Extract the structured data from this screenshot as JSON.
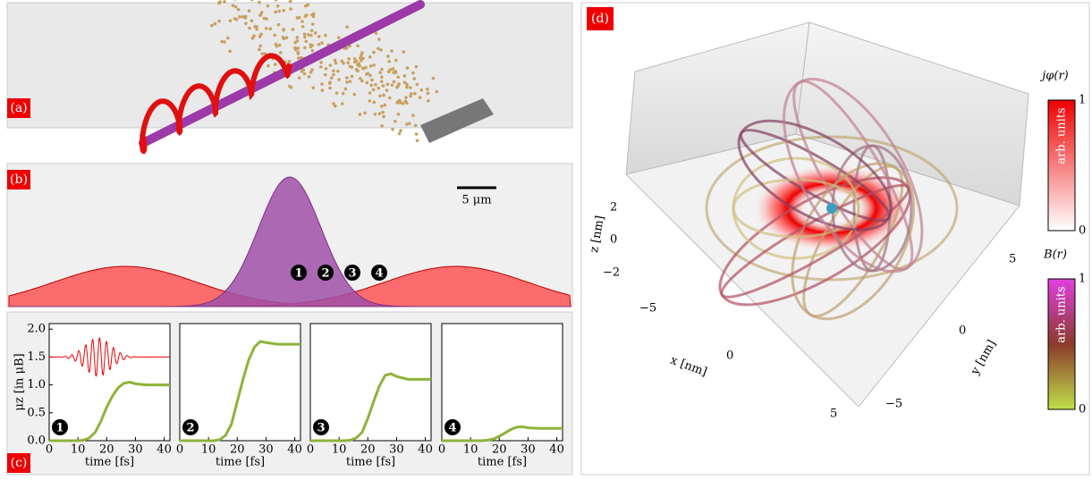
{
  "panels": {
    "a": {
      "label": "(a)"
    },
    "b": {
      "label": "(b)",
      "scale_bar": "5 μm",
      "markers": [
        "1",
        "2",
        "3",
        "4"
      ]
    },
    "c": {
      "label": "(c)"
    },
    "d": {
      "label": "(d)",
      "xlabel": "x [nm]",
      "ylabel": "y [nm]",
      "zlabel": "z [nm]",
      "xticks": [
        "−5",
        "0",
        "5"
      ],
      "yticks": [
        "−5",
        "0",
        "5"
      ],
      "zticks": [
        "−2",
        "0",
        "2"
      ],
      "colorbars": [
        {
          "title": "jφ(r)",
          "units": "arb. units",
          "min": "0",
          "max": "1"
        },
        {
          "title": "B(r)",
          "units": "arb. units",
          "min": "0",
          "max": "1"
        }
      ]
    }
  },
  "chart_data": [
    {
      "type": "line",
      "x": [
        0,
        10,
        12,
        14,
        16,
        18,
        20,
        22,
        24,
        26,
        28,
        30,
        34,
        42
      ],
      "series": [
        {
          "color": "#8db33a",
          "values": [
            0,
            0,
            0.01,
            0.05,
            0.15,
            0.35,
            0.6,
            0.8,
            0.95,
            1.03,
            1.05,
            1.02,
            1.0,
            1.0
          ]
        }
      ],
      "xlim": [
        0,
        42
      ],
      "ylim": [
        0,
        2.1
      ],
      "xticks": [
        0,
        10,
        20,
        30,
        40
      ],
      "yticks": [
        {
          "value": 0,
          "label": "0.0"
        },
        {
          "value": 0.5,
          "label": "0.5"
        },
        {
          "value": 1,
          "label": "1.0"
        },
        {
          "value": 1.5,
          "label": "1.5"
        },
        {
          "value": 2,
          "label": "2.0"
        }
      ],
      "xlabel": "time [fs]",
      "ylabel": "μz [in μB]",
      "annotation": "1"
    },
    {
      "type": "line",
      "x": [
        0,
        10,
        12,
        14,
        16,
        18,
        20,
        22,
        24,
        26,
        28,
        30,
        34,
        42
      ],
      "series": [
        {
          "color": "#8db33a",
          "values": [
            0,
            0,
            0,
            0.02,
            0.1,
            0.3,
            0.7,
            1.1,
            1.45,
            1.68,
            1.78,
            1.76,
            1.73,
            1.73
          ]
        }
      ],
      "xlim": [
        0,
        42
      ],
      "ylim": [
        0,
        2.1
      ],
      "xticks": [
        0,
        10,
        20,
        30,
        40
      ],
      "xlabel": "time [fs]",
      "annotation": "2"
    },
    {
      "type": "line",
      "x": [
        0,
        10,
        12,
        14,
        16,
        18,
        20,
        22,
        24,
        26,
        28,
        30,
        34,
        42
      ],
      "series": [
        {
          "color": "#8db33a",
          "values": [
            0,
            0,
            0,
            0.01,
            0.05,
            0.15,
            0.4,
            0.7,
            0.98,
            1.17,
            1.2,
            1.15,
            1.1,
            1.1
          ]
        }
      ],
      "xlim": [
        0,
        42
      ],
      "ylim": [
        0,
        2.1
      ],
      "xticks": [
        0,
        10,
        20,
        30,
        40
      ],
      "xlabel": "time [fs]",
      "annotation": "3"
    },
    {
      "type": "line",
      "x": [
        0,
        10,
        12,
        14,
        16,
        18,
        20,
        22,
        24,
        26,
        28,
        30,
        34,
        42
      ],
      "series": [
        {
          "color": "#8db33a",
          "values": [
            0,
            0,
            0,
            0,
            0.01,
            0.03,
            0.08,
            0.14,
            0.2,
            0.24,
            0.25,
            0.23,
            0.22,
            0.22
          ]
        }
      ],
      "xlim": [
        0,
        42
      ],
      "ylim": [
        0,
        2.1
      ],
      "xticks": [
        0,
        10,
        20,
        30,
        40
      ],
      "xlabel": "time [fs]",
      "annotation": "4"
    }
  ]
}
